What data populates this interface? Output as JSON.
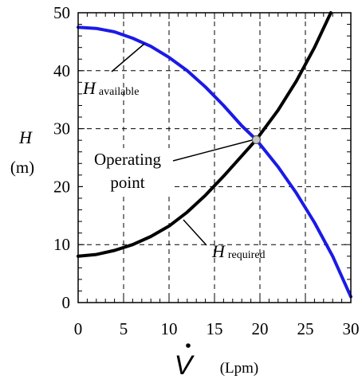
{
  "chart_data": {
    "type": "line",
    "xlabel": {
      "symbol": "V",
      "unit": "(Lpm)"
    },
    "ylabel": {
      "symbol": "H",
      "unit": "(m)"
    },
    "xlim": [
      0,
      30
    ],
    "ylim": [
      0,
      50
    ],
    "xticks": [
      0,
      5,
      10,
      15,
      20,
      25,
      30
    ],
    "yticks": [
      0,
      10,
      20,
      30,
      40,
      50
    ],
    "grid": "dashed",
    "colors": {
      "available": "#1a1ae6",
      "required": "#000000",
      "point": "#c8c8c8"
    },
    "series": [
      {
        "id": "available",
        "name": "H",
        "subscript": "available",
        "color": "#1a1ae6",
        "x": [
          0,
          2,
          4,
          6,
          8,
          10,
          12,
          14,
          16,
          18,
          19.6,
          22,
          24,
          26,
          28,
          30
        ],
        "y": [
          47.5,
          47.3,
          46.7,
          45.6,
          44.2,
          42.3,
          40.0,
          37.2,
          34.0,
          30.5,
          28.1,
          23.4,
          18.9,
          13.8,
          8.0,
          1.0
        ]
      },
      {
        "id": "required",
        "name": "H",
        "subscript": "required",
        "color": "#000000",
        "x": [
          0,
          2,
          4,
          6,
          8,
          10,
          12,
          14,
          16,
          18,
          19.6,
          22,
          24,
          26,
          27.8
        ],
        "y": [
          8.0,
          8.3,
          9.0,
          10.0,
          11.4,
          13.2,
          15.6,
          18.5,
          21.8,
          25.3,
          28.1,
          33.2,
          38.2,
          44.0,
          50.0
        ]
      }
    ],
    "operating_point": {
      "x": 19.6,
      "y": 28.1,
      "label_line1": "Operating",
      "label_line2": "point"
    },
    "annotations": [
      {
        "series": "available",
        "text": "H",
        "subscript": "available"
      },
      {
        "series": "required",
        "text": "H",
        "subscript": "required"
      }
    ]
  }
}
